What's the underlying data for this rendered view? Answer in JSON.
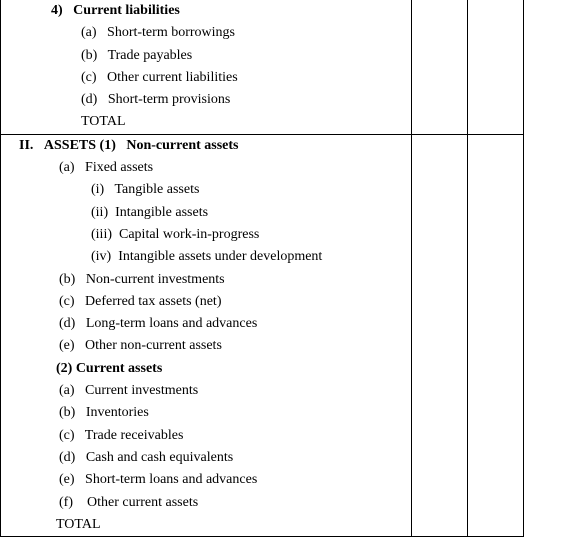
{
  "section1": {
    "heading_num": "4)",
    "heading_text": "Current liabilities",
    "items": [
      {
        "m": "(a)",
        "t": "Short-term borrowings"
      },
      {
        "m": "(b)",
        "t": "Trade payables"
      },
      {
        "m": "(c)",
        "t": "Other current liabilities"
      },
      {
        "m": "(d)",
        "t": "Short-term provisions"
      }
    ],
    "total": "TOTAL"
  },
  "section2": {
    "roman": "II.",
    "title": "ASSETS (1)",
    "title2": "Non-current assets",
    "a": {
      "m": "(a)",
      "t": "Fixed assets"
    },
    "sub": [
      {
        "m": "(i)",
        "t": "Tangible assets"
      },
      {
        "m": "(ii)",
        "t": "Intangible assets"
      },
      {
        "m": "(iii)",
        "t": "Capital work-in-progress"
      },
      {
        "m": "(iv)",
        "t": "Intangible assets under development"
      }
    ],
    "rest1": [
      {
        "m": "(b)",
        "t": "Non-current investments"
      },
      {
        "m": "(c)",
        "t": "Deferred tax assets (net)"
      },
      {
        "m": "(d)",
        "t": "Long-term loans and advances"
      },
      {
        "m": "(e)",
        "t": "Other non-current assets"
      }
    ],
    "h2": "(2) Current assets",
    "rest2": [
      {
        "m": "(a)",
        "t": "Current investments"
      },
      {
        "m": "(b)",
        "t": "Inventories"
      },
      {
        "m": "(c)",
        "t": "Trade receivables"
      },
      {
        "m": "(d)",
        "t": "Cash and cash equivalents"
      },
      {
        "m": "(e)",
        "t": "Short-term loans and advances"
      },
      {
        "m": "(f)",
        "t": "Other current assets"
      }
    ],
    "total": "TOTAL"
  }
}
